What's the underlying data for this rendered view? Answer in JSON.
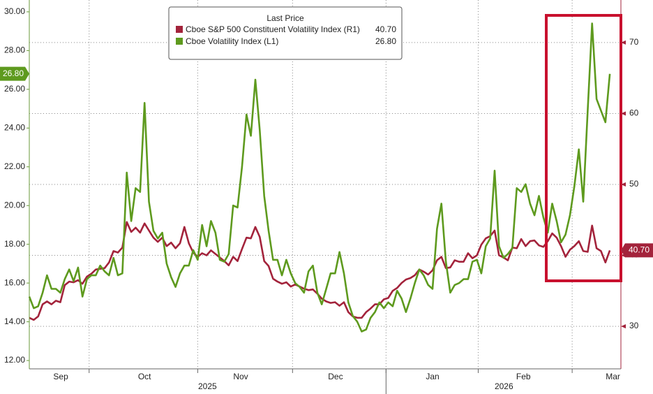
{
  "chart_data": {
    "type": "line",
    "legend_title": "Last Price",
    "x": [
      0,
      1,
      2,
      3,
      4,
      5,
      6,
      7,
      8,
      9,
      10,
      11,
      12,
      13,
      14,
      15,
      16,
      17,
      18,
      19,
      20,
      21,
      22,
      23,
      24,
      25,
      26,
      27,
      28,
      29,
      30,
      31,
      32,
      33,
      34,
      35,
      36,
      37,
      38,
      39,
      40,
      41,
      42,
      43,
      44,
      45,
      46,
      47,
      48,
      49,
      50,
      51,
      52,
      53,
      54,
      55,
      56,
      57,
      58,
      59,
      60,
      61,
      62,
      63,
      64,
      65,
      66,
      67,
      68,
      69,
      70,
      71,
      72,
      73,
      74,
      75,
      76,
      77,
      78,
      79,
      80,
      81,
      82,
      83,
      84,
      85,
      86,
      87,
      88,
      89,
      90,
      91,
      92,
      93,
      94,
      95,
      96,
      97,
      98,
      99,
      100,
      101,
      102,
      103,
      104,
      105,
      106,
      107,
      108,
      109,
      110,
      111,
      112,
      113,
      114,
      115,
      116,
      117,
      118,
      119,
      120,
      121,
      122,
      123,
      124,
      125,
      126,
      127,
      128,
      129,
      130,
      131
    ],
    "xlim": [
      0,
      133.5
    ],
    "xticks": [
      {
        "value": 7.1,
        "label": "Sep"
      },
      {
        "value": 26.0,
        "label": "Oct"
      },
      {
        "value": 47.7,
        "label": "Nov"
      },
      {
        "value": 69.1,
        "label": "Dec"
      },
      {
        "value": 91.0,
        "label": "Jan"
      },
      {
        "value": 111.5,
        "label": "Feb"
      },
      {
        "value": 131.7,
        "label": "Mar"
      }
    ],
    "xgrid": [
      13.5,
      38.0,
      59.4,
      80.5,
      101.3,
      122.5
    ],
    "year_labels": [
      {
        "value": 40.2,
        "label": "2025"
      },
      {
        "value": 107.1,
        "label": "2026"
      }
    ],
    "ylim": [
      11.57,
      30.61
    ],
    "yticks": [
      {
        "value": 12,
        "label": "12.00"
      },
      {
        "value": 14,
        "label": "14.00"
      },
      {
        "value": 16,
        "label": "16.00"
      },
      {
        "value": 18,
        "label": "18.00"
      },
      {
        "value": 20,
        "label": "20.00"
      },
      {
        "value": 22,
        "label": "22.00"
      },
      {
        "value": 24,
        "label": "24.00"
      },
      {
        "value": 26,
        "label": "26.00"
      },
      {
        "value": 28,
        "label": "28.00"
      },
      {
        "value": 30,
        "label": "30.00"
      }
    ],
    "y2lim": [
      24,
      76
    ],
    "y2ticks": [
      30,
      40,
      50,
      60,
      70
    ],
    "grid": true,
    "series": [
      {
        "name": "Cboe S&P 500 Constituent Volatility Index  (R1)",
        "color": "#a3233b",
        "axis": "y2",
        "last": {
          "value": 40.7,
          "label": "40.70"
        },
        "values": [
          31.2,
          30.9,
          31.4,
          33.1,
          33.5,
          33.1,
          33.6,
          33.4,
          35.8,
          36.3,
          36.2,
          36.5,
          36.0,
          37.0,
          37.4,
          38.0,
          38.1,
          38.2,
          39.0,
          40.6,
          40.4,
          41.1,
          44.7,
          43.3,
          43.9,
          43.2,
          44.5,
          43.5,
          42.5,
          41.9,
          42.5,
          41.3,
          41.8,
          41.0,
          41.7,
          44.0,
          41.7,
          40.4,
          39.8,
          40.3,
          40.0,
          40.7,
          40.2,
          39.7,
          39.2,
          38.6,
          39.8,
          39.2,
          40.9,
          42.5,
          42.4,
          44.0,
          42.6,
          39.2,
          38.5,
          36.7,
          36.3,
          36.0,
          36.2,
          35.6,
          35.9,
          35.6,
          35.3,
          35.1,
          35.2,
          34.6,
          33.9,
          33.5,
          33.3,
          33.4,
          32.9,
          33.4,
          32.0,
          31.4,
          31.2,
          31.2,
          32.0,
          32.5,
          33.1,
          33.1,
          33.8,
          34.0,
          35.0,
          35.4,
          36.1,
          36.6,
          36.8,
          37.2,
          38.0,
          37.7,
          37.3,
          37.9,
          39.3,
          39.8,
          38.2,
          38.3,
          39.3,
          39.1,
          39.1,
          40.3,
          39.6,
          40.0,
          41.5,
          42.4,
          42.7,
          43.5,
          40.0,
          39.7,
          39.3,
          41.1,
          41.0,
          42.3,
          41.3,
          42.0,
          42.1,
          41.4,
          41.2,
          42.0,
          43.1,
          42.5,
          41.3,
          39.8,
          40.8,
          41.3,
          42.0,
          40.6,
          40.5,
          44.2,
          41.0,
          40.6,
          39.0,
          40.7
        ]
      },
      {
        "name": "Cboe Volatility Index  (L1)",
        "color": "#5e9a1e",
        "last": {
          "value": 26.8,
          "label": "26.80"
        },
        "values": [
          15.3,
          14.7,
          14.8,
          15.5,
          16.4,
          15.7,
          15.7,
          15.5,
          16.2,
          16.7,
          16.1,
          16.8,
          15.3,
          16.2,
          16.4,
          16.4,
          16.9,
          16.6,
          16.4,
          17.3,
          16.4,
          16.5,
          21.7,
          19.2,
          20.9,
          20.7,
          25.3,
          20.2,
          18.7,
          18.3,
          18.6,
          17.0,
          16.3,
          15.8,
          16.5,
          16.9,
          16.9,
          17.7,
          17.2,
          19.0,
          17.9,
          19.2,
          18.6,
          17.2,
          17.1,
          17.5,
          20.0,
          19.9,
          22.0,
          24.7,
          23.6,
          26.5,
          23.9,
          20.5,
          18.7,
          17.2,
          17.2,
          16.4,
          17.2,
          16.5,
          16.0,
          15.8,
          15.5,
          16.6,
          16.9,
          15.5,
          14.9,
          15.7,
          16.5,
          16.5,
          17.6,
          16.5,
          15.0,
          14.3,
          14.0,
          13.5,
          13.6,
          14.2,
          14.5,
          15.0,
          14.7,
          15.0,
          14.8,
          15.6,
          15.2,
          14.5,
          15.2,
          16.0,
          16.7,
          16.4,
          15.9,
          15.7,
          18.8,
          20.1,
          17.1,
          15.5,
          15.9,
          16.0,
          16.2,
          16.2,
          17.1,
          17.2,
          16.5,
          17.9,
          18.3,
          21.8,
          17.9,
          17.3,
          17.5,
          17.8,
          20.9,
          20.7,
          21.1,
          20.1,
          19.5,
          20.5,
          19.4,
          18.6,
          20.1,
          19.2,
          18.1,
          18.5,
          19.5,
          21.0,
          22.9,
          20.2,
          24.9,
          29.4,
          25.5,
          24.9,
          24.3,
          26.8
        ]
      }
    ]
  }
}
